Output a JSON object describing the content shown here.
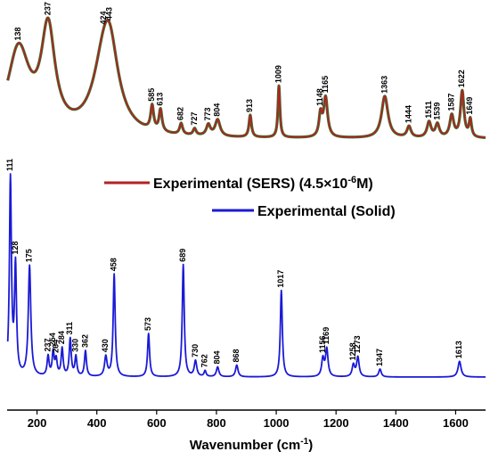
{
  "chart_data": {
    "type": "line",
    "title": "",
    "xlabel": "Wavenumber (cm",
    "xlabel_sup": "-1",
    "xlabel_tail": ")",
    "ylabel": "",
    "xlim": [
      100,
      1700
    ],
    "xticks": [
      200,
      400,
      600,
      800,
      1000,
      1200,
      1400,
      1600
    ],
    "legend": {
      "placement": "middle-right",
      "entries": [
        {
          "series_index": 0,
          "label_main": "Experimental (SERS) (4.5×10",
          "label_sup": "-6",
          "label_tail": "M)"
        },
        {
          "series_index": 1,
          "label_main": "Experimental (Solid)",
          "label_sup": "",
          "label_tail": ""
        }
      ]
    },
    "series": [
      {
        "name": "Experimental (SERS) (4.5×10-6M)",
        "color": "#b22222",
        "outline_color": "#2e7d32",
        "baseline": 0.02,
        "peaks": [
          {
            "x": 138,
            "y": 0.78,
            "w": 45,
            "label": "138"
          },
          {
            "x": 237,
            "y": 0.92,
            "w": 28,
            "label": "237"
          },
          {
            "x": 424,
            "y": 0.55,
            "w": 45,
            "label": "424"
          },
          {
            "x": 443,
            "y": 0.55,
            "w": 35,
            "label": "443"
          },
          {
            "x": 585,
            "y": 0.22,
            "w": 6,
            "label": "585"
          },
          {
            "x": 613,
            "y": 0.2,
            "w": 6,
            "label": "613"
          },
          {
            "x": 682,
            "y": 0.1,
            "w": 6,
            "label": "682"
          },
          {
            "x": 727,
            "y": 0.06,
            "w": 6,
            "label": "727"
          },
          {
            "x": 773,
            "y": 0.1,
            "w": 8,
            "label": "773"
          },
          {
            "x": 804,
            "y": 0.15,
            "w": 10,
            "label": "804"
          },
          {
            "x": 913,
            "y": 0.2,
            "w": 5,
            "label": "913"
          },
          {
            "x": 1009,
            "y": 0.47,
            "w": 4,
            "label": "1009"
          },
          {
            "x": 1148,
            "y": 0.2,
            "w": 6,
            "label": "1148"
          },
          {
            "x": 1165,
            "y": 0.36,
            "w": 8,
            "label": "1165"
          },
          {
            "x": 1363,
            "y": 0.38,
            "w": 13,
            "label": "1363"
          },
          {
            "x": 1444,
            "y": 0.1,
            "w": 8,
            "label": "1444"
          },
          {
            "x": 1511,
            "y": 0.14,
            "w": 8,
            "label": "1511"
          },
          {
            "x": 1539,
            "y": 0.12,
            "w": 8,
            "label": "1539"
          },
          {
            "x": 1587,
            "y": 0.2,
            "w": 8,
            "label": "1587"
          },
          {
            "x": 1622,
            "y": 0.42,
            "w": 7,
            "label": "1622"
          },
          {
            "x": 1649,
            "y": 0.16,
            "w": 5,
            "label": "1649"
          }
        ]
      },
      {
        "name": "Experimental (Solid)",
        "color": "#1a1ad6",
        "outline_color": "#1a1ad6",
        "baseline": 0.0,
        "peaks": [
          {
            "x": 111,
            "y": 1.0,
            "w": 4,
            "label": "111"
          },
          {
            "x": 128,
            "y": 0.55,
            "w": 4,
            "label": "128"
          },
          {
            "x": 175,
            "y": 0.56,
            "w": 5,
            "label": "175"
          },
          {
            "x": 237,
            "y": 0.1,
            "w": 4,
            "label": "237"
          },
          {
            "x": 254,
            "y": 0.12,
            "w": 4,
            "label": "254"
          },
          {
            "x": 264,
            "y": 0.08,
            "w": 4,
            "label": "264"
          },
          {
            "x": 284,
            "y": 0.14,
            "w": 4,
            "label": "284"
          },
          {
            "x": 311,
            "y": 0.19,
            "w": 4,
            "label": "311"
          },
          {
            "x": 330,
            "y": 0.1,
            "w": 4,
            "label": "330"
          },
          {
            "x": 362,
            "y": 0.13,
            "w": 4,
            "label": "362"
          },
          {
            "x": 430,
            "y": 0.1,
            "w": 5,
            "label": "430"
          },
          {
            "x": 458,
            "y": 0.52,
            "w": 4,
            "label": "458"
          },
          {
            "x": 573,
            "y": 0.22,
            "w": 4,
            "label": "573"
          },
          {
            "x": 689,
            "y": 0.57,
            "w": 4,
            "label": "689"
          },
          {
            "x": 730,
            "y": 0.08,
            "w": 5,
            "label": "730"
          },
          {
            "x": 762,
            "y": 0.03,
            "w": 4,
            "label": "762"
          },
          {
            "x": 804,
            "y": 0.05,
            "w": 5,
            "label": "804"
          },
          {
            "x": 868,
            "y": 0.06,
            "w": 5,
            "label": "868"
          },
          {
            "x": 1017,
            "y": 0.44,
            "w": 4,
            "label": "1017"
          },
          {
            "x": 1156,
            "y": 0.09,
            "w": 5,
            "label": "1156"
          },
          {
            "x": 1169,
            "y": 0.14,
            "w": 5,
            "label": "1169"
          },
          {
            "x": 1258,
            "y": 0.06,
            "w": 5,
            "label": "1258"
          },
          {
            "x": 1273,
            "y": 0.1,
            "w": 5,
            "label": "1273"
          },
          {
            "x": 1347,
            "y": 0.04,
            "w": 5,
            "label": "1347"
          },
          {
            "x": 1613,
            "y": 0.08,
            "w": 6,
            "label": "1613"
          }
        ]
      }
    ]
  }
}
